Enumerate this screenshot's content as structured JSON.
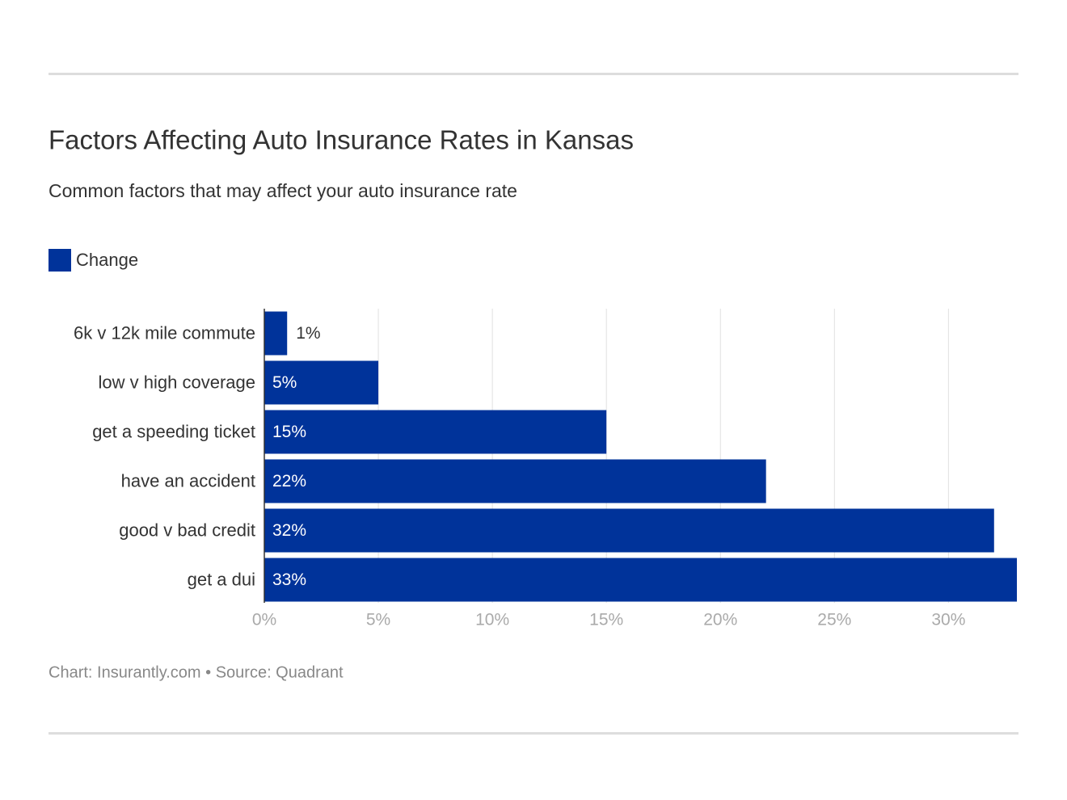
{
  "chart_data": {
    "type": "bar",
    "orientation": "horizontal",
    "title": "Factors Affecting Auto Insurance Rates in Kansas",
    "subtitle": "Common factors that may affect your auto insurance rate",
    "categories": [
      "6k v 12k mile commute",
      "low v high coverage",
      "get a speeding ticket",
      "have an accident",
      "good v bad credit",
      "get a dui"
    ],
    "series": [
      {
        "name": "Change",
        "color": "#00339a",
        "values": [
          1,
          5,
          15,
          22,
          32,
          33
        ],
        "value_labels": [
          "1%",
          "5%",
          "15%",
          "22%",
          "32%",
          "33%"
        ]
      }
    ],
    "xlim": [
      0,
      33
    ],
    "xticks": [
      {
        "value": 0,
        "label": "0%"
      },
      {
        "value": 5,
        "label": "5%"
      },
      {
        "value": 10,
        "label": "10%"
      },
      {
        "value": 15,
        "label": "15%"
      },
      {
        "value": 20,
        "label": "20%"
      },
      {
        "value": 25,
        "label": "25%"
      },
      {
        "value": 30,
        "label": "30%"
      }
    ],
    "grid": true,
    "caption": "Chart: Insurantly.com • Source: Quadrant"
  }
}
